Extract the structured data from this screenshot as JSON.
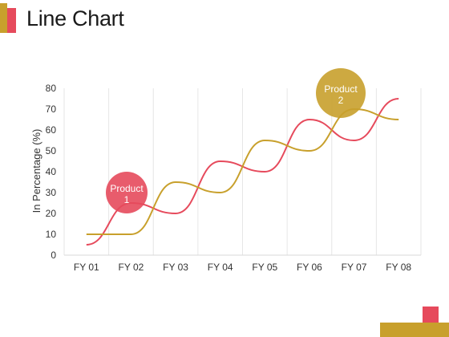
{
  "page": {
    "title": "Line Chart"
  },
  "colors": {
    "red": "#E64A5C",
    "gold": "#C8A02C",
    "grid": "#E6E6E6"
  },
  "chart_data": {
    "type": "line",
    "title": "",
    "xlabel": "",
    "ylabel": "In Percentage (%)",
    "categories": [
      "FY 01",
      "FY 02",
      "FY 03",
      "FY 04",
      "FY 05",
      "FY 06",
      "FY 07",
      "FY 08"
    ],
    "yticks": [
      0,
      10,
      20,
      30,
      40,
      50,
      60,
      70,
      80
    ],
    "ylim": [
      0,
      80
    ],
    "grid": "vertical",
    "series": [
      {
        "name": "Product 1",
        "color": "#E64A5C",
        "values": [
          5,
          25,
          20,
          45,
          40,
          65,
          55,
          75
        ]
      },
      {
        "name": "Product 2",
        "color": "#C8A02C",
        "values": [
          10,
          10,
          35,
          30,
          55,
          50,
          70,
          65
        ]
      }
    ],
    "callouts": [
      {
        "label_line1": "Product",
        "label_line2": "1",
        "series": 0
      },
      {
        "label_line1": "Product",
        "label_line2": "2",
        "series": 1
      }
    ]
  }
}
